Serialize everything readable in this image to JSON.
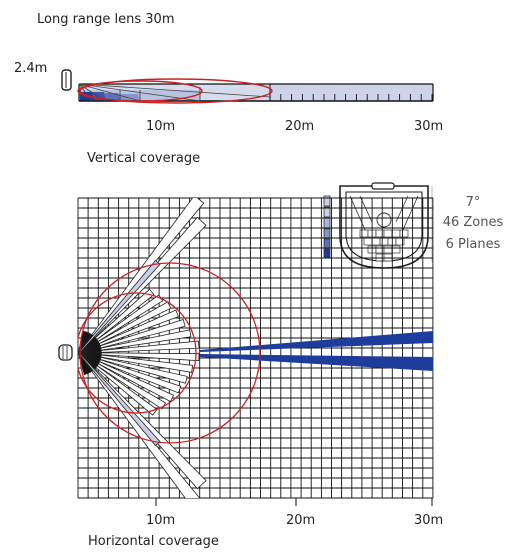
{
  "title": "Long range lens 30m",
  "vertical": {
    "height_label": "2.4m",
    "caption": "Vertical coverage",
    "distance_labels": [
      "10m",
      "20m",
      "30m"
    ]
  },
  "horizontal": {
    "caption": "Horizontal coverage",
    "distance_labels": [
      "10m",
      "20m",
      "30m"
    ]
  },
  "specs": {
    "angle": "7°",
    "zones": "46 Zones",
    "planes": "6 Planes"
  },
  "colors": {
    "zone_blue": "#1e3c9c",
    "zone_light": "#c8cfe6",
    "ring_red": "#cc2222",
    "grid": "#111111"
  },
  "icons": {
    "sensor": "motion-sensor-icon",
    "lens": "detector-lens-icon"
  }
}
